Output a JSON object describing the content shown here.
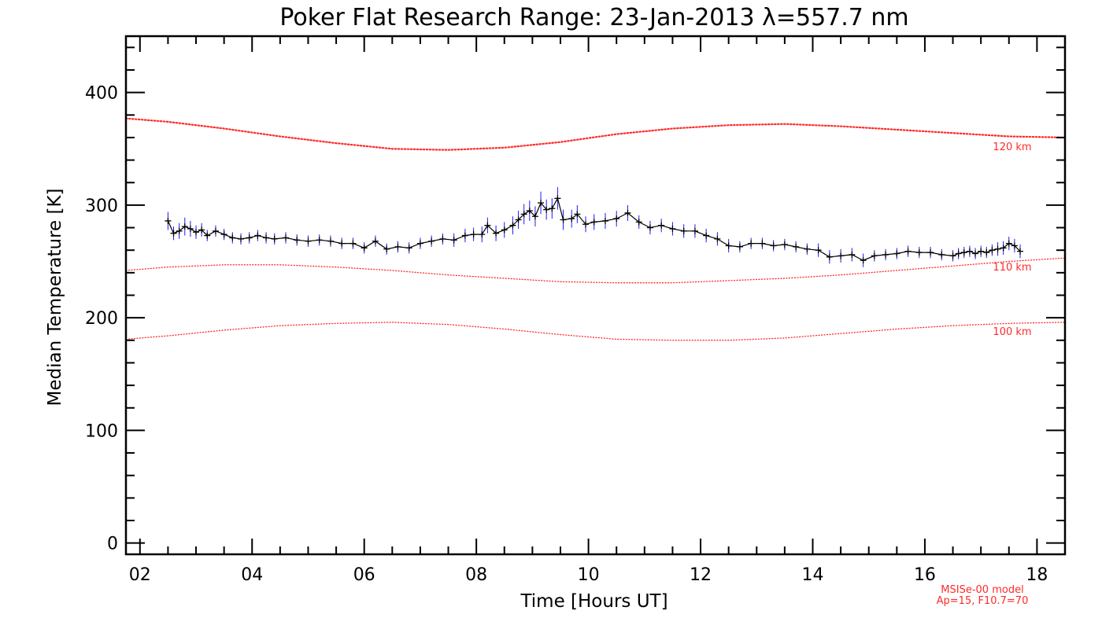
{
  "chart_data": {
    "type": "line",
    "title": "Poker Flat Research Range: 23-Jan-2013 λ=557.7 nm",
    "xlabel": "Time [Hours UT]",
    "ylabel": "Median Temperature [K]",
    "xlim": [
      1.75,
      18.5
    ],
    "ylim": [
      -10,
      450
    ],
    "x_ticks": [
      2,
      4,
      6,
      8,
      10,
      12,
      14,
      16,
      18
    ],
    "x_tick_labels": [
      "02",
      "04",
      "06",
      "08",
      "10",
      "12",
      "14",
      "16",
      "18"
    ],
    "y_ticks": [
      0,
      100,
      200,
      300,
      400
    ],
    "y_tick_labels": [
      "0",
      "100",
      "200",
      "300",
      "400"
    ],
    "colors": {
      "data": "#000000",
      "error": "#1a1aff",
      "model": "#ff2a2a"
    },
    "measured": {
      "name": "Median temperature",
      "x": [
        2.5,
        2.6,
        2.7,
        2.8,
        2.9,
        3.0,
        3.1,
        3.2,
        3.35,
        3.5,
        3.65,
        3.8,
        3.95,
        4.1,
        4.25,
        4.4,
        4.6,
        4.8,
        5.0,
        5.2,
        5.4,
        5.6,
        5.8,
        6.0,
        6.2,
        6.4,
        6.6,
        6.8,
        7.0,
        7.2,
        7.4,
        7.6,
        7.8,
        7.95,
        8.1,
        8.2,
        8.35,
        8.5,
        8.65,
        8.75,
        8.85,
        8.95,
        9.05,
        9.15,
        9.25,
        9.35,
        9.45,
        9.55,
        9.7,
        9.8,
        9.95,
        10.1,
        10.3,
        10.5,
        10.7,
        10.9,
        11.1,
        11.3,
        11.5,
        11.7,
        11.9,
        12.1,
        12.3,
        12.5,
        12.7,
        12.9,
        13.1,
        13.3,
        13.5,
        13.7,
        13.9,
        14.1,
        14.3,
        14.5,
        14.7,
        14.9,
        15.1,
        15.3,
        15.5,
        15.7,
        15.9,
        16.1,
        16.3,
        16.5,
        16.6,
        16.7,
        16.8,
        16.9,
        17.0,
        17.1,
        17.2,
        17.3,
        17.4,
        17.5,
        17.6,
        17.7
      ],
      "y": [
        286,
        275,
        277,
        281,
        279,
        276,
        278,
        273,
        277,
        274,
        271,
        270,
        271,
        273,
        271,
        270,
        271,
        269,
        268,
        269,
        268,
        266,
        266,
        262,
        268,
        261,
        263,
        262,
        266,
        268,
        270,
        269,
        273,
        274,
        274,
        282,
        275,
        278,
        282,
        287,
        292,
        295,
        290,
        302,
        296,
        297,
        306,
        287,
        288,
        292,
        283,
        285,
        286,
        288,
        293,
        285,
        280,
        282,
        279,
        277,
        277,
        273,
        270,
        264,
        263,
        266,
        266,
        264,
        265,
        263,
        261,
        260,
        254,
        255,
        256,
        251,
        255,
        256,
        257,
        259,
        258,
        258,
        256,
        255,
        257,
        258,
        259,
        257,
        259,
        258,
        260,
        261,
        262,
        266,
        264,
        259
      ],
      "error": [
        8,
        6,
        7,
        8,
        7,
        6,
        6,
        5,
        5,
        5,
        5,
        5,
        5,
        5,
        5,
        5,
        5,
        5,
        5,
        5,
        5,
        5,
        5,
        5,
        5,
        5,
        5,
        5,
        5,
        5,
        5,
        6,
        6,
        6,
        7,
        7,
        7,
        7,
        8,
        8,
        9,
        9,
        9,
        10,
        9,
        9,
        10,
        9,
        8,
        8,
        7,
        7,
        7,
        7,
        7,
        6,
        6,
        6,
        6,
        6,
        6,
        6,
        6,
        6,
        5,
        5,
        5,
        5,
        5,
        5,
        5,
        6,
        6,
        6,
        6,
        6,
        5,
        5,
        5,
        5,
        5,
        5,
        5,
        5,
        5,
        5,
        5,
        5,
        5,
        5,
        5,
        6,
        6,
        6,
        6,
        6
      ]
    },
    "model_series": [
      {
        "name": "120 km",
        "label": "120 km",
        "x": [
          1.75,
          2.5,
          3.5,
          4.5,
          5.5,
          6.5,
          7.5,
          8.5,
          9.5,
          10.5,
          11.5,
          12.5,
          13.5,
          14.5,
          15.5,
          16.5,
          17.5,
          18.5
        ],
        "y": [
          377,
          374,
          368,
          361,
          355,
          350,
          349,
          351,
          356,
          363,
          368,
          371,
          372,
          370,
          367,
          364,
          361,
          360
        ]
      },
      {
        "name": "110 km",
        "label": "110 km",
        "x": [
          1.75,
          2.5,
          3.5,
          4.5,
          5.5,
          6.5,
          7.5,
          8.5,
          9.5,
          10.5,
          11.5,
          12.5,
          13.5,
          14.5,
          15.5,
          16.5,
          17.5,
          18.5
        ],
        "y": [
          242,
          245,
          247,
          247,
          245,
          242,
          238,
          235,
          232,
          231,
          231,
          233,
          235,
          238,
          242,
          246,
          250,
          253
        ]
      },
      {
        "name": "100 km",
        "label": "100 km",
        "x": [
          1.75,
          2.5,
          3.5,
          4.5,
          5.5,
          6.5,
          7.5,
          8.5,
          9.5,
          10.5,
          11.5,
          12.5,
          13.5,
          14.5,
          15.5,
          16.5,
          17.5,
          18.5
        ],
        "y": [
          181,
          184,
          189,
          193,
          195,
          196,
          194,
          190,
          185,
          181,
          180,
          180,
          182,
          186,
          190,
          193,
          195,
          196
        ]
      }
    ],
    "model_note": [
      "MSISe-00 model",
      "Ap=15, F10.7=70"
    ]
  }
}
